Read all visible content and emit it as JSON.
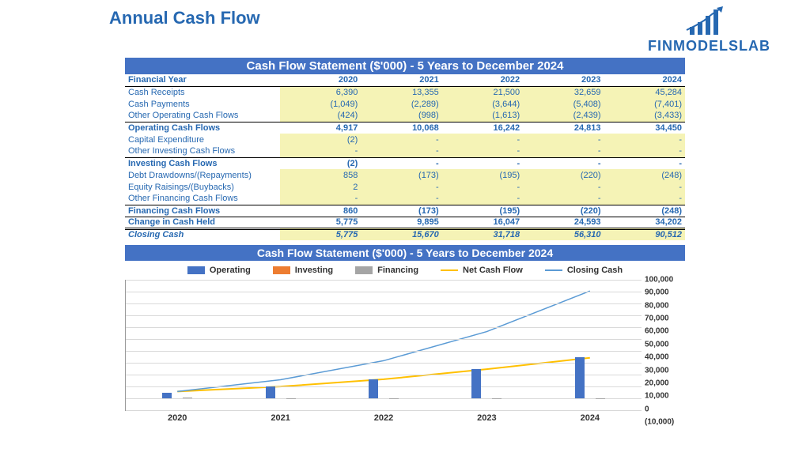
{
  "title": "Annual Cash Flow",
  "logo_text": "FINMODELSLAB",
  "table": {
    "banner": "Cash Flow Statement ($'000) - 5 Years to December 2024",
    "header_label": "Financial Year",
    "years": [
      "2020",
      "2021",
      "2022",
      "2023",
      "2024"
    ],
    "rows": [
      {
        "label": "Cash Receipts",
        "vals": [
          "6,390",
          "13,355",
          "21,500",
          "32,659",
          "45,284"
        ],
        "yellow": true
      },
      {
        "label": "Cash Payments",
        "vals": [
          "(1,049)",
          "(2,289)",
          "(3,644)",
          "(5,408)",
          "(7,401)"
        ],
        "yellow": true
      },
      {
        "label": "Other Operating Cash Flows",
        "vals": [
          "(424)",
          "(998)",
          "(1,613)",
          "(2,439)",
          "(3,433)"
        ],
        "yellow": true,
        "underline": true
      },
      {
        "label": "Operating Cash Flows",
        "vals": [
          "4,917",
          "10,068",
          "16,242",
          "24,813",
          "34,450"
        ],
        "bold": true,
        "totals": true
      },
      {
        "label": "Capital Expenditure",
        "vals": [
          "(2)",
          "-",
          "-",
          "-",
          "-"
        ],
        "yellow": true
      },
      {
        "label": "Other Investing Cash Flows",
        "vals": [
          "-",
          "-",
          "-",
          "-",
          "-"
        ],
        "yellow": true,
        "underline": true
      },
      {
        "label": "Investing Cash Flows",
        "vals": [
          "(2)",
          "-",
          "-",
          "-",
          "-"
        ],
        "bold": true,
        "totals": true
      },
      {
        "label": "Debt Drawdowns/(Repayments)",
        "vals": [
          "858",
          "(173)",
          "(195)",
          "(220)",
          "(248)"
        ],
        "yellow": true
      },
      {
        "label": "Equity Raisings/(Buybacks)",
        "vals": [
          "2",
          "-",
          "-",
          "-",
          "-"
        ],
        "yellow": true
      },
      {
        "label": "Other Financing Cash Flows",
        "vals": [
          "-",
          "-",
          "-",
          "-",
          "-"
        ],
        "yellow": true,
        "underline": true
      },
      {
        "label": "Financing Cash Flows",
        "vals": [
          "860",
          "(173)",
          "(195)",
          "(220)",
          "(248)"
        ],
        "bold": true,
        "totals": true
      },
      {
        "label": "Change in Cash Held",
        "vals": [
          "5,775",
          "9,895",
          "16,047",
          "24,593",
          "34,202"
        ],
        "bold": true,
        "double": true
      },
      {
        "label": "Closing Cash",
        "vals": [
          "5,775",
          "15,670",
          "31,718",
          "56,310",
          "90,512"
        ],
        "closing": true
      }
    ]
  },
  "chart": {
    "banner": "Cash Flow Statement ($'000) - 5 Years to December 2024",
    "legend": [
      {
        "label": "Operating",
        "type": "box",
        "color": "#4472c4"
      },
      {
        "label": "Investing",
        "type": "box",
        "color": "#ed7d31"
      },
      {
        "label": "Financing",
        "type": "box",
        "color": "#a5a5a5"
      },
      {
        "label": "Net Cash Flow",
        "type": "line",
        "color": "#ffc000"
      },
      {
        "label": "Closing Cash",
        "type": "line",
        "color": "#5b9bd5"
      }
    ],
    "categories": [
      "2020",
      "2021",
      "2022",
      "2023",
      "2024"
    ],
    "ymin": -10000,
    "ymax": 100000,
    "ytick_step": 10000,
    "y_format": "comma",
    "grid_color": "#d9d9d9",
    "background_color": "#ffffff",
    "bars": {
      "operating": {
        "color": "#4472c4",
        "values": [
          4917,
          10068,
          16242,
          24813,
          34450
        ]
      },
      "investing": {
        "color": "#ed7d31",
        "values": [
          -2,
          0,
          0,
          0,
          0
        ]
      },
      "financing": {
        "color": "#a5a5a5",
        "values": [
          860,
          -173,
          -195,
          -220,
          -248
        ]
      }
    },
    "lines": {
      "net_cash_flow": {
        "color": "#ffc000",
        "width": 2,
        "values": [
          5775,
          9895,
          16047,
          24593,
          34202
        ]
      },
      "closing_cash": {
        "color": "#5b9bd5",
        "width": 1.5,
        "values": [
          5775,
          15670,
          31718,
          56310,
          90512
        ]
      }
    }
  }
}
